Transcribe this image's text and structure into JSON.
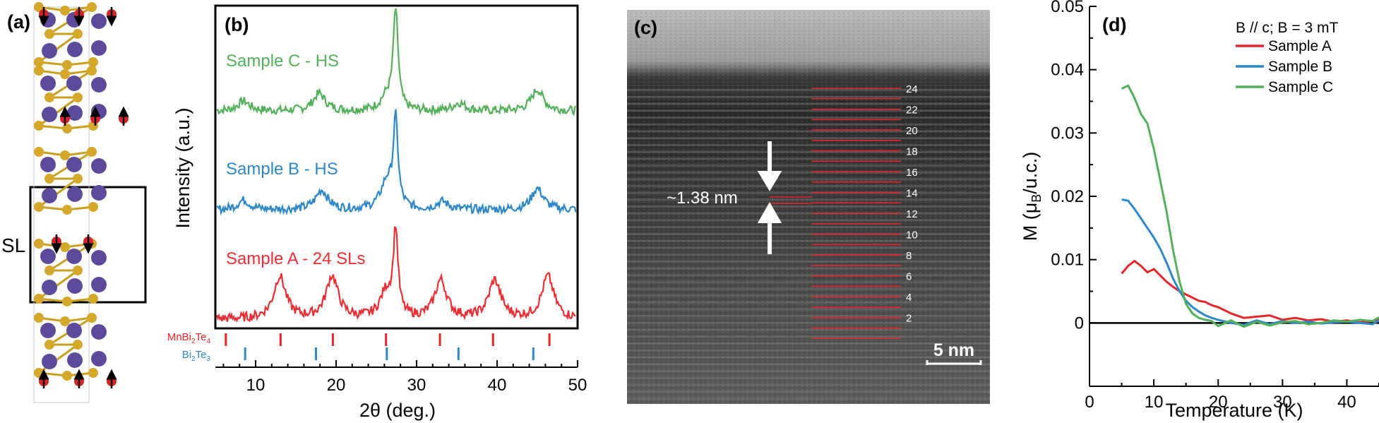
{
  "panels": {
    "a": {
      "label": "(a)",
      "sl_label": "SL"
    },
    "b": {
      "label": "(b)",
      "traces": [
        {
          "name": "Sample C - HS",
          "color": "#52b05a"
        },
        {
          "name": "Sample B - HS",
          "color": "#2d87c8"
        },
        {
          "name": "Sample A - 24 SLs",
          "color": "#ea2e33"
        }
      ],
      "reference_rows": [
        {
          "label": "MnBi2Te4",
          "color": "#e4262b",
          "positions": [
            6.3,
            13.1,
            19.6,
            26.2,
            32.9,
            39.5,
            46.5
          ]
        },
        {
          "label": "Bi2Te3",
          "color": "#2d87c8",
          "positions": [
            8.7,
            17.5,
            26.3,
            35.2,
            44.5
          ]
        }
      ]
    },
    "c": {
      "label": "(c)",
      "spacing_label": "~1.38 nm",
      "scale_bar": "5 nm",
      "layer_numbers": [
        "24",
        "22",
        "20",
        "18",
        "16",
        "14",
        "12",
        "10",
        "8",
        "6",
        "4",
        "2"
      ]
    },
    "d": {
      "label": "(d)",
      "legend_title": "B // c; B = 3 mT"
    }
  },
  "chart_data": [
    {
      "type": "line",
      "panel": "b",
      "xlabel": "2θ (deg.)",
      "ylabel": "Intensity (a.u.)",
      "xlim": [
        5,
        50
      ],
      "xticks": [
        10,
        20,
        30,
        40,
        50
      ],
      "yticks": [],
      "series": [
        {
          "name": "Sample C - HS",
          "peaks": [
            {
              "x": 8.5,
              "h": 0.25
            },
            {
              "x": 17.9,
              "h": 0.45
            },
            {
              "x": 26.3,
              "h": 0.35
            },
            {
              "x": 27.4,
              "h": 2.6
            },
            {
              "x": 35.3,
              "h": 0.2
            },
            {
              "x": 45.0,
              "h": 0.55
            }
          ]
        },
        {
          "name": "Sample B - HS",
          "peaks": [
            {
              "x": 8.5,
              "h": 0.25
            },
            {
              "x": 18.2,
              "h": 0.5
            },
            {
              "x": 26.3,
              "h": 0.7
            },
            {
              "x": 27.4,
              "h": 2.2
            },
            {
              "x": 33.2,
              "h": 0.2
            },
            {
              "x": 45.0,
              "h": 0.55
            }
          ]
        },
        {
          "name": "Sample A - 24 SLs",
          "peaks": [
            {
              "x": 13.0,
              "h": 1.0
            },
            {
              "x": 19.5,
              "h": 1.0
            },
            {
              "x": 26.2,
              "h": 0.6
            },
            {
              "x": 27.4,
              "h": 2.0
            },
            {
              "x": 33.0,
              "h": 0.9
            },
            {
              "x": 39.7,
              "h": 0.9
            },
            {
              "x": 46.3,
              "h": 1.0
            }
          ]
        }
      ]
    },
    {
      "type": "line",
      "panel": "d",
      "title": "B // c; B = 3 mT",
      "xlabel": "Temperature (K)",
      "ylabel": "M (μB/u.c.)",
      "xlim": [
        0,
        45
      ],
      "ylim": [
        -0.01,
        0.05
      ],
      "xticks": [
        0,
        10,
        20,
        30,
        40
      ],
      "yticks": [
        0,
        0.01,
        0.02,
        0.03,
        0.04,
        0.05
      ],
      "ytick_labels": [
        "0",
        "0.01",
        "0.02",
        "0.03",
        "0.04",
        "0.05"
      ],
      "series": [
        {
          "name": "Sample A",
          "color": "#e4262b",
          "x": [
            5,
            6,
            7,
            8,
            9,
            10,
            11,
            12,
            13,
            14,
            15,
            16,
            17,
            18,
            19,
            20,
            22,
            24,
            26,
            28,
            30,
            32,
            34,
            36,
            38,
            40,
            42,
            44,
            45
          ],
          "y": [
            0.0078,
            0.009,
            0.0098,
            0.009,
            0.008,
            0.0085,
            0.0075,
            0.0065,
            0.0057,
            0.005,
            0.0045,
            0.004,
            0.0035,
            0.0033,
            0.0028,
            0.0025,
            0.0015,
            0.0008,
            0.001,
            0.0012,
            0.0005,
            0.0008,
            0.0004,
            0.0006,
            0.0002,
            0.0004,
            0.0001,
            0.0003,
            0.0006
          ]
        },
        {
          "name": "Sample B",
          "color": "#2d87c8",
          "x": [
            5,
            6,
            7,
            8,
            9,
            10,
            11,
            12,
            13,
            14,
            15,
            16,
            17,
            18,
            19,
            20,
            22,
            24,
            26,
            28,
            30,
            32,
            34,
            36,
            38,
            40,
            42,
            44,
            45
          ],
          "y": [
            0.0195,
            0.0193,
            0.018,
            0.0165,
            0.015,
            0.0135,
            0.0117,
            0.0095,
            0.007,
            0.005,
            0.0035,
            0.0025,
            0.0018,
            0.0012,
            0.0008,
            0.0005,
            0.0,
            -0.0003,
            0.0004,
            -0.0002,
            0.0003,
            0.0,
            0.0002,
            -0.0001,
            0.0001,
            0.0002,
            0.0,
            -0.0002,
            0.0004
          ]
        },
        {
          "name": "Sample C",
          "color": "#52b05a",
          "x": [
            5,
            6,
            7,
            8,
            9,
            10,
            11,
            12,
            13,
            14,
            15,
            16,
            17,
            18,
            19,
            20,
            22,
            24,
            26,
            28,
            30,
            32,
            34,
            36,
            38,
            40,
            42,
            44,
            45
          ],
          "y": [
            0.037,
            0.0375,
            0.0355,
            0.033,
            0.0315,
            0.0275,
            0.0225,
            0.0175,
            0.0115,
            0.0065,
            0.003,
            0.0015,
            0.0008,
            0.0005,
            0.0003,
            -0.0005,
            0.0004,
            -0.0006,
            0.0002,
            -0.0004,
            0.0001,
            0.0003,
            -0.0002,
            0.0,
            0.0004,
            0.0002,
            0.0005,
            0.0003,
            0.0009
          ]
        }
      ]
    }
  ]
}
